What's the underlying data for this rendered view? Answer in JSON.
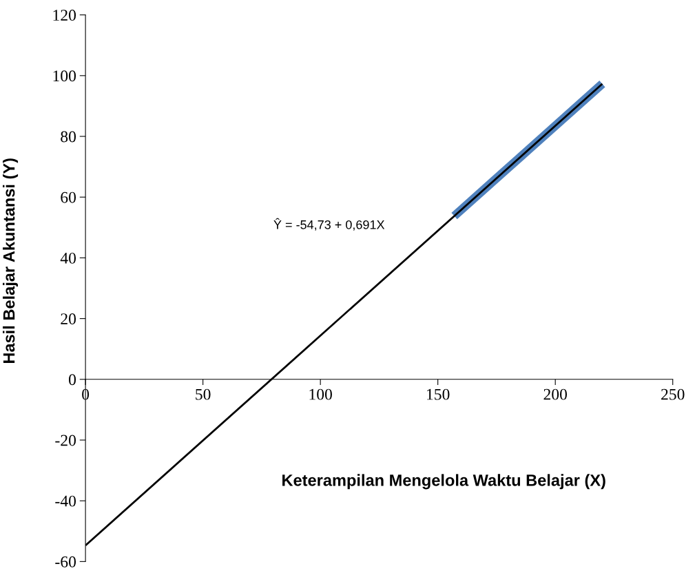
{
  "chart_data": {
    "type": "line",
    "xlabel": "Keterampilan Mengelola Waktu Belajar (X)",
    "ylabel": "Hasil Belajar Akuntansi (Y)",
    "series": [
      {
        "color": "#4f81bd",
        "x": [
          157,
          220
        ],
        "values": [
          53.8,
          97.3
        ]
      },
      {
        "color": "#000000",
        "x": [
          0,
          220
        ],
        "values": [
          -54.7,
          97.3
        ]
      }
    ],
    "annotations": [
      "Ŷ = -54,73 + 0,691X"
    ],
    "xlim": [
      0,
      250
    ],
    "xticks": [
      0,
      50,
      100,
      150,
      200,
      250
    ],
    "ylim": [
      -60,
      120
    ],
    "yticks": [
      -60,
      -40,
      -20,
      0,
      20,
      40,
      60,
      80,
      100,
      120
    ],
    "grid": false,
    "legend": false
  }
}
